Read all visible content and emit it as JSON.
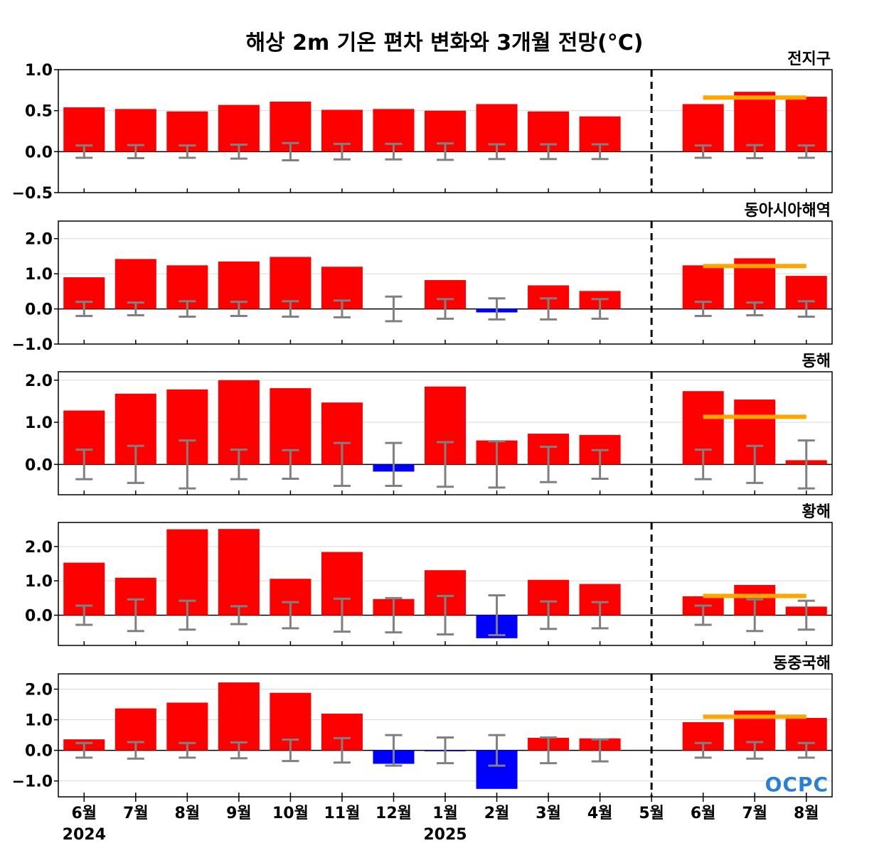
{
  "title": "해상 2m 기온 편차 변화와 3개월 전망(°C)",
  "logo_text": "OCPC",
  "colors": {
    "positive": "#ff0000",
    "negative": "#0000ff",
    "error_bar": "#808080",
    "forecast_line": "#ffa500",
    "divider": "#000000",
    "grid": "#d9d9d9"
  },
  "chart_data": [
    {
      "type": "bar",
      "panel_title": "전지구",
      "categories": [
        "6월",
        "7월",
        "8월",
        "9월",
        "10월",
        "11월",
        "12월",
        "1월",
        "2월",
        "3월",
        "4월",
        "5월",
        "6월",
        "7월",
        "8월"
      ],
      "values": [
        0.54,
        0.52,
        0.49,
        0.57,
        0.61,
        0.51,
        0.52,
        0.5,
        0.58,
        0.49,
        0.43,
        0.0,
        0.58,
        0.73,
        0.67
      ],
      "error_bar": [
        0.075,
        0.08,
        0.075,
        0.085,
        0.105,
        0.095,
        0.095,
        0.1,
        0.09,
        0.09,
        0.09,
        0.0,
        0.075,
        0.08,
        0.075
      ],
      "forecast_mean": 0.66,
      "ylim": [
        -0.5,
        1.0
      ],
      "yticks": [
        "1.0",
        "0.5",
        "0.0",
        "−0.5"
      ],
      "grid": true
    },
    {
      "type": "bar",
      "panel_title": "동아시아해역",
      "categories": [
        "6월",
        "7월",
        "8월",
        "9월",
        "10월",
        "11월",
        "12월",
        "1월",
        "2월",
        "3월",
        "4월",
        "5월",
        "6월",
        "7월",
        "8월"
      ],
      "values": [
        0.9,
        1.42,
        1.24,
        1.35,
        1.48,
        1.2,
        0.0,
        0.82,
        -0.1,
        0.67,
        0.51,
        0.0,
        1.24,
        1.44,
        0.94
      ],
      "error_bar": [
        0.2,
        0.18,
        0.22,
        0.2,
        0.22,
        0.24,
        0.35,
        0.28,
        0.3,
        0.3,
        0.28,
        0.0,
        0.2,
        0.18,
        0.22
      ],
      "forecast_mean": 1.22,
      "ylim": [
        -1.0,
        2.5
      ],
      "yticks": [
        "2.0",
        "1.0",
        "0.0",
        "−1.0"
      ],
      "grid": true
    },
    {
      "type": "bar",
      "panel_title": "동해",
      "categories": [
        "6월",
        "7월",
        "8월",
        "9월",
        "10월",
        "11월",
        "12월",
        "1월",
        "2월",
        "3월",
        "4월",
        "5월",
        "6월",
        "7월",
        "8월"
      ],
      "values": [
        1.28,
        1.68,
        1.78,
        2.0,
        1.81,
        1.47,
        -0.17,
        1.85,
        0.57,
        0.73,
        0.7,
        0.0,
        1.74,
        1.54,
        0.1
      ],
      "error_bar": [
        0.35,
        0.44,
        0.57,
        0.35,
        0.34,
        0.51,
        0.51,
        0.53,
        0.55,
        0.42,
        0.34,
        0.0,
        0.35,
        0.44,
        0.57
      ],
      "forecast_mean": 1.13,
      "ylim": [
        -0.72,
        2.2
      ],
      "yticks": [
        "2.0",
        "1.0",
        "0.0"
      ],
      "grid": true
    },
    {
      "type": "bar",
      "panel_title": "황해",
      "categories": [
        "6월",
        "7월",
        "8월",
        "9월",
        "10월",
        "11월",
        "12월",
        "1월",
        "2월",
        "3월",
        "4월",
        "5월",
        "6월",
        "7월",
        "8월"
      ],
      "values": [
        1.53,
        1.09,
        2.5,
        2.51,
        1.06,
        1.84,
        0.47,
        1.31,
        -0.67,
        1.03,
        0.91,
        0.0,
        0.55,
        0.88,
        0.25
      ],
      "error_bar": [
        0.28,
        0.46,
        0.42,
        0.26,
        0.38,
        0.48,
        0.5,
        0.56,
        0.58,
        0.4,
        0.38,
        0.0,
        0.28,
        0.46,
        0.42
      ],
      "forecast_mean": 0.56,
      "ylim": [
        -0.88,
        2.7
      ],
      "yticks": [
        "2.0",
        "1.0",
        "0.0"
      ],
      "grid": true
    },
    {
      "type": "bar",
      "panel_title": "동중국해",
      "categories": [
        "6월",
        "7월",
        "8월",
        "9월",
        "10월",
        "11월",
        "12월",
        "1월",
        "2월",
        "3월",
        "4월",
        "5월",
        "6월",
        "7월",
        "8월"
      ],
      "values": [
        0.36,
        1.37,
        1.56,
        2.22,
        1.88,
        1.2,
        -0.44,
        -0.03,
        -1.26,
        0.41,
        0.39,
        0.0,
        0.92,
        1.3,
        1.06
      ],
      "error_bar": [
        0.24,
        0.27,
        0.24,
        0.26,
        0.35,
        0.4,
        0.5,
        0.42,
        0.5,
        0.42,
        0.36,
        0.0,
        0.24,
        0.27,
        0.24
      ],
      "forecast_mean": 1.1,
      "ylim": [
        -1.52,
        2.5
      ],
      "yticks": [
        "2.0",
        "1.0",
        "0.0",
        "−1.0"
      ],
      "grid": true
    }
  ],
  "x_axis": {
    "tick_labels": [
      "6월",
      "7월",
      "8월",
      "9월",
      "10월",
      "11월",
      "12월",
      "1월",
      "2월",
      "3월",
      "4월",
      "5월",
      "6월",
      "7월",
      "8월"
    ],
    "year_labels": [
      {
        "index": 0,
        "text": "2024"
      },
      {
        "index": 7,
        "text": "2025"
      }
    ],
    "divider_index": 11
  }
}
